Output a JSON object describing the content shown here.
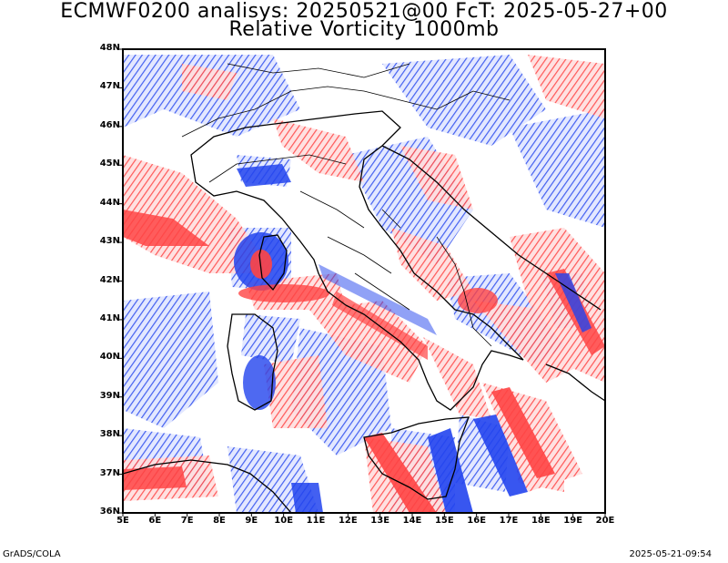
{
  "header": {
    "title_line1": "ECMWF0200 analisys: 20250521@00 FcT: 2025-05-27+00",
    "title_line2": "Relative Vorticity 1000mb"
  },
  "footer": {
    "left": "GrADS/COLA",
    "right": "2025-05-21-09:54"
  },
  "map": {
    "lat_labels": [
      "48N",
      "47N",
      "46N",
      "45N",
      "44N",
      "43N",
      "42N",
      "41N",
      "40N",
      "39N",
      "38N",
      "37N",
      "36N"
    ],
    "lon_labels": [
      "5E",
      "6E",
      "7E",
      "8E",
      "9E",
      "10E",
      "11E",
      "12E",
      "13E",
      "14E",
      "15E",
      "16E",
      "17E",
      "18E",
      "19E",
      "20E"
    ],
    "lat_range": [
      36,
      48
    ],
    "lon_range": [
      5,
      20
    ],
    "colors": {
      "positive": "#ff4444",
      "negative": "#2244ee",
      "coast": "#000000"
    }
  }
}
